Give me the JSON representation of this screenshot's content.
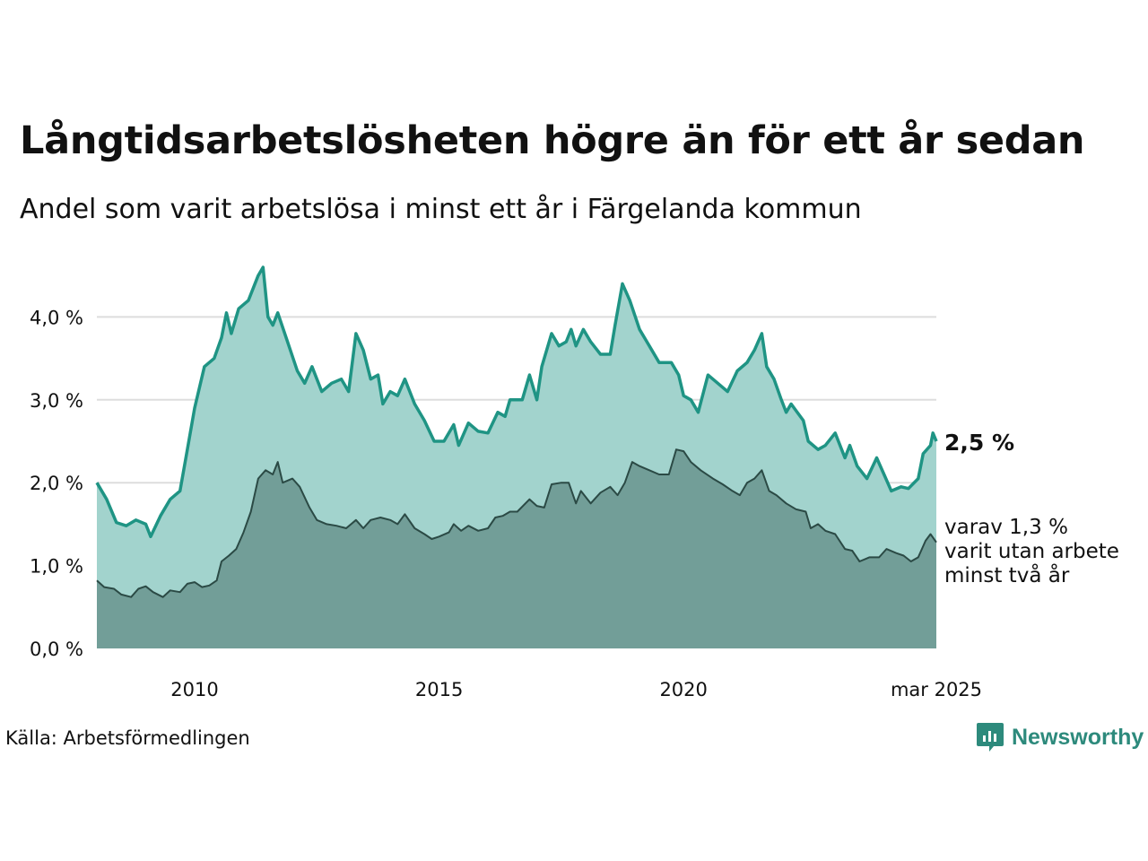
{
  "title": "Långtidsarbetslösheten högre än för ett år sedan",
  "subtitle": "Andel som varit arbetslösa i minst ett år i Färgelanda kommun",
  "source": "Källa: Arbetsförmedlingen",
  "brand": {
    "name": "Newsworthy",
    "icon": "newsworthy-logo-icon"
  },
  "colors": {
    "line1": "#1f9484",
    "area1": "#a2d3cd",
    "line2": "#2b4a45",
    "area2": "#729e98",
    "grid": "#dddddd"
  },
  "chart_data": {
    "type": "area",
    "x_start": "2008-01",
    "x_end": "2025-03",
    "x_ticks": [
      {
        "x": 2010.0,
        "label": "2010"
      },
      {
        "x": 2015.0,
        "label": "2015"
      },
      {
        "x": 2020.0,
        "label": "2020"
      },
      {
        "x": 2025.17,
        "label": "mar 2025"
      }
    ],
    "y_ticks": [
      {
        "y": 0,
        "label": "0,0 %"
      },
      {
        "y": 1,
        "label": "1,0 %"
      },
      {
        "y": 2,
        "label": "2,0 %"
      },
      {
        "y": 3,
        "label": "3,0 %"
      },
      {
        "y": 4,
        "label": "4,0 %"
      }
    ],
    "ylim": [
      0,
      4.6
    ],
    "grid": true,
    "series": [
      {
        "key": "min1",
        "end_label": "2,5 %",
        "points": [
          [
            2008.0,
            2.0
          ],
          [
            2008.2,
            1.8
          ],
          [
            2008.4,
            1.52
          ],
          [
            2008.6,
            1.48
          ],
          [
            2008.8,
            1.55
          ],
          [
            2009.0,
            1.5
          ],
          [
            2009.1,
            1.35
          ],
          [
            2009.3,
            1.6
          ],
          [
            2009.5,
            1.8
          ],
          [
            2009.7,
            1.9
          ],
          [
            2009.85,
            2.4
          ],
          [
            2010.0,
            2.9
          ],
          [
            2010.2,
            3.4
          ],
          [
            2010.4,
            3.5
          ],
          [
            2010.55,
            3.75
          ],
          [
            2010.65,
            4.05
          ],
          [
            2010.75,
            3.8
          ],
          [
            2010.9,
            4.1
          ],
          [
            2011.1,
            4.2
          ],
          [
            2011.3,
            4.5
          ],
          [
            2011.4,
            4.6
          ],
          [
            2011.5,
            4.0
          ],
          [
            2011.6,
            3.9
          ],
          [
            2011.7,
            4.05
          ],
          [
            2011.9,
            3.7
          ],
          [
            2012.1,
            3.35
          ],
          [
            2012.25,
            3.2
          ],
          [
            2012.4,
            3.4
          ],
          [
            2012.6,
            3.1
          ],
          [
            2012.8,
            3.2
          ],
          [
            2013.0,
            3.25
          ],
          [
            2013.15,
            3.1
          ],
          [
            2013.3,
            3.8
          ],
          [
            2013.45,
            3.6
          ],
          [
            2013.6,
            3.25
          ],
          [
            2013.75,
            3.3
          ],
          [
            2013.85,
            2.95
          ],
          [
            2014.0,
            3.1
          ],
          [
            2014.15,
            3.05
          ],
          [
            2014.3,
            3.25
          ],
          [
            2014.5,
            2.95
          ],
          [
            2014.7,
            2.75
          ],
          [
            2014.9,
            2.5
          ],
          [
            2015.1,
            2.5
          ],
          [
            2015.3,
            2.7
          ],
          [
            2015.4,
            2.45
          ],
          [
            2015.6,
            2.72
          ],
          [
            2015.8,
            2.62
          ],
          [
            2016.0,
            2.6
          ],
          [
            2016.2,
            2.85
          ],
          [
            2016.35,
            2.8
          ],
          [
            2016.45,
            3.0
          ],
          [
            2016.7,
            3.0
          ],
          [
            2016.85,
            3.3
          ],
          [
            2017.0,
            3.0
          ],
          [
            2017.1,
            3.4
          ],
          [
            2017.3,
            3.8
          ],
          [
            2017.45,
            3.65
          ],
          [
            2017.6,
            3.7
          ],
          [
            2017.7,
            3.85
          ],
          [
            2017.8,
            3.65
          ],
          [
            2017.95,
            3.85
          ],
          [
            2018.1,
            3.7
          ],
          [
            2018.3,
            3.55
          ],
          [
            2018.5,
            3.55
          ],
          [
            2018.6,
            3.9
          ],
          [
            2018.75,
            4.4
          ],
          [
            2018.9,
            4.2
          ],
          [
            2019.1,
            3.85
          ],
          [
            2019.3,
            3.65
          ],
          [
            2019.5,
            3.45
          ],
          [
            2019.75,
            3.45
          ],
          [
            2019.9,
            3.3
          ],
          [
            2020.0,
            3.05
          ],
          [
            2020.15,
            3.0
          ],
          [
            2020.3,
            2.85
          ],
          [
            2020.5,
            3.3
          ],
          [
            2020.7,
            3.2
          ],
          [
            2020.9,
            3.1
          ],
          [
            2021.1,
            3.35
          ],
          [
            2021.3,
            3.45
          ],
          [
            2021.45,
            3.6
          ],
          [
            2021.6,
            3.8
          ],
          [
            2021.7,
            3.4
          ],
          [
            2021.85,
            3.25
          ],
          [
            2022.0,
            3.0
          ],
          [
            2022.1,
            2.85
          ],
          [
            2022.2,
            2.95
          ],
          [
            2022.45,
            2.75
          ],
          [
            2022.55,
            2.5
          ],
          [
            2022.75,
            2.4
          ],
          [
            2022.9,
            2.45
          ],
          [
            2023.1,
            2.6
          ],
          [
            2023.3,
            2.3
          ],
          [
            2023.4,
            2.45
          ],
          [
            2023.55,
            2.2
          ],
          [
            2023.75,
            2.05
          ],
          [
            2023.95,
            2.3
          ],
          [
            2024.1,
            2.1
          ],
          [
            2024.25,
            1.9
          ],
          [
            2024.45,
            1.95
          ],
          [
            2024.6,
            1.93
          ],
          [
            2024.8,
            2.05
          ],
          [
            2024.9,
            2.35
          ],
          [
            2025.05,
            2.45
          ],
          [
            2025.1,
            2.6
          ],
          [
            2025.17,
            2.5
          ]
        ]
      },
      {
        "key": "min2",
        "end_label": "varav 1,3 %\nvarit utan arbete\nminst två år",
        "points": [
          [
            2008.0,
            0.82
          ],
          [
            2008.15,
            0.74
          ],
          [
            2008.35,
            0.72
          ],
          [
            2008.5,
            0.65
          ],
          [
            2008.7,
            0.62
          ],
          [
            2008.85,
            0.72
          ],
          [
            2009.0,
            0.75
          ],
          [
            2009.15,
            0.68
          ],
          [
            2009.35,
            0.62
          ],
          [
            2009.5,
            0.7
          ],
          [
            2009.7,
            0.68
          ],
          [
            2009.85,
            0.78
          ],
          [
            2010.0,
            0.8
          ],
          [
            2010.15,
            0.74
          ],
          [
            2010.3,
            0.76
          ],
          [
            2010.45,
            0.82
          ],
          [
            2010.55,
            1.05
          ],
          [
            2010.7,
            1.12
          ],
          [
            2010.85,
            1.2
          ],
          [
            2011.0,
            1.4
          ],
          [
            2011.15,
            1.65
          ],
          [
            2011.3,
            2.05
          ],
          [
            2011.45,
            2.15
          ],
          [
            2011.6,
            2.1
          ],
          [
            2011.7,
            2.25
          ],
          [
            2011.8,
            2.0
          ],
          [
            2012.0,
            2.05
          ],
          [
            2012.15,
            1.95
          ],
          [
            2012.35,
            1.7
          ],
          [
            2012.5,
            1.55
          ],
          [
            2012.7,
            1.5
          ],
          [
            2012.9,
            1.48
          ],
          [
            2013.1,
            1.45
          ],
          [
            2013.3,
            1.55
          ],
          [
            2013.45,
            1.45
          ],
          [
            2013.6,
            1.55
          ],
          [
            2013.8,
            1.58
          ],
          [
            2014.0,
            1.55
          ],
          [
            2014.15,
            1.5
          ],
          [
            2014.3,
            1.62
          ],
          [
            2014.5,
            1.45
          ],
          [
            2014.7,
            1.38
          ],
          [
            2014.85,
            1.32
          ],
          [
            2015.0,
            1.35
          ],
          [
            2015.2,
            1.4
          ],
          [
            2015.3,
            1.5
          ],
          [
            2015.45,
            1.42
          ],
          [
            2015.6,
            1.48
          ],
          [
            2015.8,
            1.42
          ],
          [
            2016.0,
            1.45
          ],
          [
            2016.15,
            1.58
          ],
          [
            2016.3,
            1.6
          ],
          [
            2016.45,
            1.65
          ],
          [
            2016.6,
            1.65
          ],
          [
            2016.85,
            1.8
          ],
          [
            2017.0,
            1.72
          ],
          [
            2017.15,
            1.7
          ],
          [
            2017.3,
            1.98
          ],
          [
            2017.5,
            2.0
          ],
          [
            2017.65,
            2.0
          ],
          [
            2017.8,
            1.75
          ],
          [
            2017.9,
            1.9
          ],
          [
            2018.1,
            1.75
          ],
          [
            2018.3,
            1.88
          ],
          [
            2018.5,
            1.95
          ],
          [
            2018.65,
            1.85
          ],
          [
            2018.8,
            2.0
          ],
          [
            2018.95,
            2.25
          ],
          [
            2019.1,
            2.2
          ],
          [
            2019.3,
            2.15
          ],
          [
            2019.5,
            2.1
          ],
          [
            2019.7,
            2.1
          ],
          [
            2019.85,
            2.4
          ],
          [
            2020.0,
            2.38
          ],
          [
            2020.15,
            2.25
          ],
          [
            2020.35,
            2.15
          ],
          [
            2020.6,
            2.05
          ],
          [
            2020.8,
            1.98
          ],
          [
            2021.0,
            1.9
          ],
          [
            2021.15,
            1.85
          ],
          [
            2021.3,
            2.0
          ],
          [
            2021.45,
            2.05
          ],
          [
            2021.6,
            2.15
          ],
          [
            2021.75,
            1.9
          ],
          [
            2021.9,
            1.85
          ],
          [
            2022.1,
            1.75
          ],
          [
            2022.3,
            1.68
          ],
          [
            2022.5,
            1.65
          ],
          [
            2022.6,
            1.45
          ],
          [
            2022.75,
            1.5
          ],
          [
            2022.9,
            1.42
          ],
          [
            2023.1,
            1.38
          ],
          [
            2023.3,
            1.2
          ],
          [
            2023.45,
            1.18
          ],
          [
            2023.6,
            1.05
          ],
          [
            2023.8,
            1.1
          ],
          [
            2024.0,
            1.1
          ],
          [
            2024.15,
            1.2
          ],
          [
            2024.35,
            1.15
          ],
          [
            2024.5,
            1.12
          ],
          [
            2024.65,
            1.05
          ],
          [
            2024.8,
            1.1
          ],
          [
            2024.95,
            1.3
          ],
          [
            2025.05,
            1.38
          ],
          [
            2025.17,
            1.28
          ]
        ]
      }
    ]
  }
}
